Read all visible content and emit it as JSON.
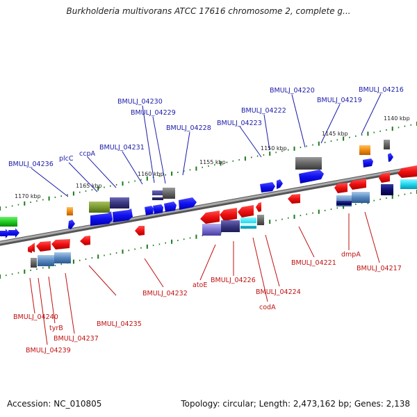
{
  "title": "Burkholderia multivorans ATCC 17616 chromosome 2, complete g...",
  "footer": {
    "accession": "Accession: NC_010805",
    "summary": "Topology: circular; Length: 2,473,162 bp; Genes: 2,138"
  },
  "colors": {
    "forward_label": "#1a1aa8",
    "reverse_label": "#c01010",
    "backbone": "#8c8c8c",
    "tick": "#1a7a1a"
  },
  "kbp_markers": [
    "1140 kbp",
    "1145 kbp",
    "1150 kbp",
    "1155 kbp",
    "1160 kbp",
    "1165 kbp",
    "1170 kbp"
  ],
  "forward_labels": [
    "BMULJ_04216",
    "BMULJ_04219",
    "BMULJ_04220",
    "BMULJ_04222",
    "BMULJ_04223",
    "BMULJ_04228",
    "BMULJ_04229",
    "BMULJ_04230",
    "BMULJ_04231",
    "ccpA",
    "plcC",
    "BMULJ_04236"
  ],
  "reverse_labels": [
    "BMULJ_04217",
    "dmpA",
    "BMULJ_04221",
    "BMULJ_04224",
    "codA",
    "BMULJ_04226",
    "atoE",
    "BMULJ_04232",
    "BMULJ_04235",
    "BMULJ_04237",
    "tyrB",
    "BMULJ_04239",
    "BMULJ_04240"
  ]
}
